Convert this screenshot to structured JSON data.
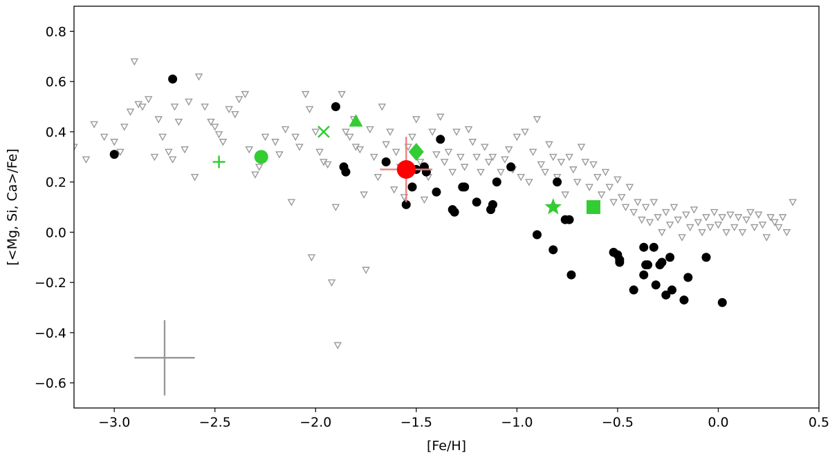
{
  "chart_data": {
    "type": "scatter",
    "xlabel": "[Fe/H]",
    "ylabel": "[<Mg, Si, Ca>/Fe]",
    "xlim": [
      -3.2,
      0.5
    ],
    "ylim": [
      -0.7,
      0.9
    ],
    "xticks": [
      -3.0,
      -2.5,
      -2.0,
      -1.5,
      -1.0,
      -0.5,
      0.0,
      0.5
    ],
    "xtick_labels": [
      "−3.0",
      "−2.5",
      "−2.0",
      "−1.5",
      "−1.0",
      "−0.5",
      "0.0",
      "0.5"
    ],
    "yticks": [
      -0.6,
      -0.4,
      -0.2,
      0.0,
      0.2,
      0.4,
      0.6,
      0.8
    ],
    "ytick_labels": [
      "−0.6",
      "−0.4",
      "−0.2",
      "0.0",
      "0.2",
      "0.4",
      "0.6",
      "0.8"
    ],
    "grid": false,
    "colors": {
      "gray": "#999999",
      "black": "#000000",
      "red": "#ff0000",
      "red_error": "#f08080",
      "green": "#33cc33"
    },
    "series": [
      {
        "marker": "triangle-down-open",
        "color": "#999999",
        "points": [
          [
            -3.2,
            0.34
          ],
          [
            -3.14,
            0.29
          ],
          [
            -3.1,
            0.43
          ],
          [
            -3.05,
            0.38
          ],
          [
            -3.0,
            0.36
          ],
          [
            -2.97,
            0.32
          ],
          [
            -2.95,
            0.42
          ],
          [
            -2.92,
            0.48
          ],
          [
            -2.9,
            0.68
          ],
          [
            -2.88,
            0.51
          ],
          [
            -2.86,
            0.5
          ],
          [
            -2.83,
            0.53
          ],
          [
            -2.8,
            0.3
          ],
          [
            -2.78,
            0.45
          ],
          [
            -2.76,
            0.38
          ],
          [
            -2.73,
            0.32
          ],
          [
            -2.71,
            0.29
          ],
          [
            -2.7,
            0.5
          ],
          [
            -2.68,
            0.44
          ],
          [
            -2.65,
            0.33
          ],
          [
            -2.63,
            0.52
          ],
          [
            -2.6,
            0.22
          ],
          [
            -2.58,
            0.62
          ],
          [
            -2.55,
            0.5
          ],
          [
            -2.52,
            0.44
          ],
          [
            -2.5,
            0.42
          ],
          [
            -2.48,
            0.39
          ],
          [
            -2.46,
            0.36
          ],
          [
            -2.43,
            0.49
          ],
          [
            -2.4,
            0.47
          ],
          [
            -2.38,
            0.53
          ],
          [
            -2.35,
            0.55
          ],
          [
            -2.33,
            0.33
          ],
          [
            -2.3,
            0.23
          ],
          [
            -2.28,
            0.26
          ],
          [
            -2.25,
            0.38
          ],
          [
            -2.2,
            0.36
          ],
          [
            -2.18,
            0.31
          ],
          [
            -2.15,
            0.41
          ],
          [
            -2.12,
            0.12
          ],
          [
            -2.1,
            0.38
          ],
          [
            -2.08,
            0.34
          ],
          [
            -2.05,
            0.55
          ],
          [
            -2.03,
            0.49
          ],
          [
            -2.02,
            -0.1
          ],
          [
            -2.0,
            0.4
          ],
          [
            -1.98,
            0.32
          ],
          [
            -1.96,
            0.28
          ],
          [
            -1.94,
            0.27
          ],
          [
            -1.92,
            -0.2
          ],
          [
            -1.9,
            0.1
          ],
          [
            -1.89,
            -0.45
          ],
          [
            -1.87,
            0.55
          ],
          [
            -1.85,
            0.4
          ],
          [
            -1.83,
            0.38
          ],
          [
            -1.81,
            0.45
          ],
          [
            -1.8,
            0.34
          ],
          [
            -1.78,
            0.33
          ],
          [
            -1.76,
            0.15
          ],
          [
            -1.75,
            -0.15
          ],
          [
            -1.73,
            0.41
          ],
          [
            -1.71,
            0.3
          ],
          [
            -1.69,
            0.22
          ],
          [
            -1.67,
            0.5
          ],
          [
            -1.65,
            0.35
          ],
          [
            -1.63,
            0.4
          ],
          [
            -1.61,
            0.17
          ],
          [
            -1.6,
            0.32
          ],
          [
            -1.58,
            0.26
          ],
          [
            -1.56,
            0.14
          ],
          [
            -1.54,
            0.34
          ],
          [
            -1.52,
            0.38
          ],
          [
            -1.5,
            0.45
          ],
          [
            -1.48,
            0.28
          ],
          [
            -1.46,
            0.13
          ],
          [
            -1.44,
            0.22
          ],
          [
            -1.42,
            0.4
          ],
          [
            -1.4,
            0.31
          ],
          [
            -1.38,
            0.46
          ],
          [
            -1.36,
            0.28
          ],
          [
            -1.34,
            0.32
          ],
          [
            -1.32,
            0.24
          ],
          [
            -1.3,
            0.4
          ],
          [
            -1.28,
            0.3
          ],
          [
            -1.26,
            0.26
          ],
          [
            -1.24,
            0.41
          ],
          [
            -1.22,
            0.36
          ],
          [
            -1.2,
            0.3
          ],
          [
            -1.18,
            0.24
          ],
          [
            -1.16,
            0.34
          ],
          [
            -1.14,
            0.28
          ],
          [
            -1.12,
            0.3
          ],
          [
            -1.1,
            0.2
          ],
          [
            -1.08,
            0.24
          ],
          [
            -1.06,
            0.29
          ],
          [
            -1.04,
            0.33
          ],
          [
            -1.02,
            0.25
          ],
          [
            -1.0,
            0.38
          ],
          [
            -0.98,
            0.22
          ],
          [
            -0.96,
            0.4
          ],
          [
            -0.94,
            0.2
          ],
          [
            -0.92,
            0.32
          ],
          [
            -0.9,
            0.45
          ],
          [
            -0.88,
            0.27
          ],
          [
            -0.86,
            0.24
          ],
          [
            -0.84,
            0.35
          ],
          [
            -0.82,
            0.3
          ],
          [
            -0.8,
            0.22
          ],
          [
            -0.78,
            0.28
          ],
          [
            -0.76,
            0.15
          ],
          [
            -0.74,
            0.3
          ],
          [
            -0.72,
            0.25
          ],
          [
            -0.7,
            0.2
          ],
          [
            -0.68,
            0.34
          ],
          [
            -0.66,
            0.28
          ],
          [
            -0.64,
            0.18
          ],
          [
            -0.62,
            0.27
          ],
          [
            -0.6,
            0.22
          ],
          [
            -0.58,
            0.15
          ],
          [
            -0.56,
            0.24
          ],
          [
            -0.54,
            0.18
          ],
          [
            -0.52,
            0.12
          ],
          [
            -0.5,
            0.21
          ],
          [
            -0.48,
            0.14
          ],
          [
            -0.46,
            0.1
          ],
          [
            -0.44,
            0.18
          ],
          [
            -0.42,
            0.08
          ],
          [
            -0.4,
            0.12
          ],
          [
            -0.38,
            0.05
          ],
          [
            -0.36,
            0.1
          ],
          [
            -0.34,
            0.04
          ],
          [
            -0.32,
            0.12
          ],
          [
            -0.3,
            0.06
          ],
          [
            -0.28,
            0.0
          ],
          [
            -0.26,
            0.08
          ],
          [
            -0.24,
            0.03
          ],
          [
            -0.22,
            0.1
          ],
          [
            -0.2,
            0.05
          ],
          [
            -0.18,
            -0.02
          ],
          [
            -0.16,
            0.07
          ],
          [
            -0.14,
            0.02
          ],
          [
            -0.12,
            0.09
          ],
          [
            -0.1,
            0.04
          ],
          [
            -0.08,
            0.0
          ],
          [
            -0.06,
            0.06
          ],
          [
            -0.04,
            0.02
          ],
          [
            -0.02,
            0.08
          ],
          [
            0.0,
            0.03
          ],
          [
            0.02,
            0.06
          ],
          [
            0.04,
            0.0
          ],
          [
            0.06,
            0.07
          ],
          [
            0.08,
            0.02
          ],
          [
            0.1,
            0.06
          ],
          [
            0.12,
            0.0
          ],
          [
            0.14,
            0.05
          ],
          [
            0.16,
            0.08
          ],
          [
            0.18,
            0.02
          ],
          [
            0.2,
            0.07
          ],
          [
            0.22,
            0.03
          ],
          [
            0.24,
            -0.02
          ],
          [
            0.26,
            0.06
          ],
          [
            0.28,
            0.04
          ],
          [
            0.3,
            0.02
          ],
          [
            0.32,
            0.06
          ],
          [
            0.34,
            0.0
          ],
          [
            0.37,
            0.12
          ]
        ]
      },
      {
        "marker": "circle",
        "color": "#000000",
        "points": [
          [
            -3.0,
            0.31
          ],
          [
            -2.71,
            0.61
          ],
          [
            -1.9,
            0.5
          ],
          [
            -1.86,
            0.26
          ],
          [
            -1.85,
            0.24
          ],
          [
            -1.65,
            0.28
          ],
          [
            -1.55,
            0.11
          ],
          [
            -1.52,
            0.18
          ],
          [
            -1.5,
            0.25
          ],
          [
            -1.46,
            0.26
          ],
          [
            -1.45,
            0.24
          ],
          [
            -1.4,
            0.16
          ],
          [
            -1.38,
            0.37
          ],
          [
            -1.32,
            0.09
          ],
          [
            -1.31,
            0.08
          ],
          [
            -1.27,
            0.18
          ],
          [
            -1.26,
            0.18
          ],
          [
            -1.2,
            0.12
          ],
          [
            -1.13,
            0.09
          ],
          [
            -1.12,
            0.11
          ],
          [
            -1.1,
            0.2
          ],
          [
            -1.03,
            0.26
          ],
          [
            -0.9,
            -0.01
          ],
          [
            -0.82,
            -0.07
          ],
          [
            -0.8,
            0.2
          ],
          [
            -0.76,
            0.05
          ],
          [
            -0.74,
            0.05
          ],
          [
            -0.73,
            -0.17
          ],
          [
            -0.52,
            -0.08
          ],
          [
            -0.5,
            -0.09
          ],
          [
            -0.49,
            -0.11
          ],
          [
            -0.49,
            -0.12
          ],
          [
            -0.42,
            -0.23
          ],
          [
            -0.37,
            -0.06
          ],
          [
            -0.37,
            -0.17
          ],
          [
            -0.36,
            -0.13
          ],
          [
            -0.35,
            -0.13
          ],
          [
            -0.32,
            -0.06
          ],
          [
            -0.31,
            -0.21
          ],
          [
            -0.29,
            -0.13
          ],
          [
            -0.28,
            -0.12
          ],
          [
            -0.26,
            -0.25
          ],
          [
            -0.24,
            -0.1
          ],
          [
            -0.23,
            -0.23
          ],
          [
            -0.17,
            -0.27
          ],
          [
            -0.15,
            -0.18
          ],
          [
            -0.06,
            -0.1
          ],
          [
            0.02,
            -0.28
          ]
        ]
      },
      {
        "marker": "circle-large",
        "color": "#ff0000",
        "error_color": "#f08080",
        "points": [
          [
            -1.55,
            0.25
          ]
        ],
        "xerr": 0.13,
        "yerr": 0.13
      },
      {
        "marker": "green-symbols",
        "color": "#33cc33",
        "points": [
          {
            "x": -2.48,
            "y": 0.28,
            "shape": "plus"
          },
          {
            "x": -2.27,
            "y": 0.3,
            "shape": "circle"
          },
          {
            "x": -1.96,
            "y": 0.4,
            "shape": "x"
          },
          {
            "x": -1.8,
            "y": 0.44,
            "shape": "triangle-up"
          },
          {
            "x": -1.5,
            "y": 0.32,
            "shape": "diamond"
          },
          {
            "x": -0.82,
            "y": 0.1,
            "shape": "star"
          },
          {
            "x": -0.62,
            "y": 0.1,
            "shape": "square"
          }
        ]
      },
      {
        "marker": "errorbar-key",
        "color": "#999999",
        "points": [
          [
            -2.75,
            -0.5
          ]
        ],
        "xerr": 0.15,
        "yerr": 0.15
      }
    ]
  }
}
